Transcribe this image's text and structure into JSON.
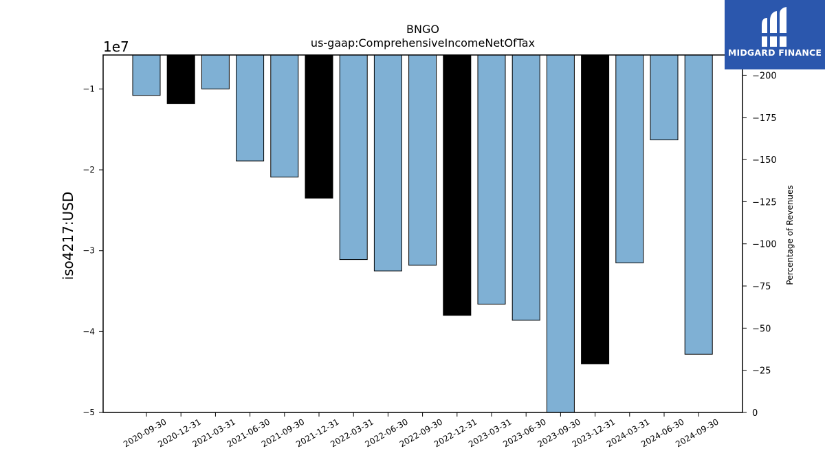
{
  "brand": {
    "name": "MIDGARD FINANCE",
    "color": "#2b57ad"
  },
  "chart_data": {
    "type": "bar",
    "title": "BNGO",
    "subtitle": "us-gaap:ComprehensiveIncomeNetOfTax",
    "ylabel": "iso4217:USD",
    "y_offset_label": "1e7",
    "y2label": "Percentage of Revenues",
    "ylim": [
      -50000000,
      -5800000
    ],
    "y2lim": [
      0,
      -212
    ],
    "yticks": [
      -1,
      -2,
      -3,
      -4,
      -5
    ],
    "y2ticks": [
      0,
      -25,
      -50,
      -75,
      -100,
      -125,
      -150,
      -175,
      -200
    ],
    "categories": [
      "2020-09-30",
      "2020-12-31",
      "2021-03-31",
      "2021-06-30",
      "2021-09-30",
      "2021-12-31",
      "2022-03-31",
      "2022-06-30",
      "2022-09-30",
      "2022-12-31",
      "2023-03-31",
      "2023-06-30",
      "2023-09-30",
      "2023-12-31",
      "2024-03-31",
      "2024-06-30",
      "2024-09-30"
    ],
    "values": [
      -10800000,
      -11800000,
      -10000000,
      -18900000,
      -20900000,
      -23500000,
      -31100000,
      -32500000,
      -31800000,
      -38000000,
      -36600000,
      -38600000,
      -50000000,
      -44000000,
      -31500000,
      -16300000,
      -42800000
    ],
    "annual_flags": [
      false,
      true,
      false,
      false,
      false,
      true,
      false,
      false,
      false,
      true,
      false,
      false,
      false,
      true,
      false,
      false,
      false
    ],
    "colors": {
      "quarterly": "#7fb0d4",
      "annual": "#000000"
    },
    "grid": false,
    "legend": "none"
  }
}
